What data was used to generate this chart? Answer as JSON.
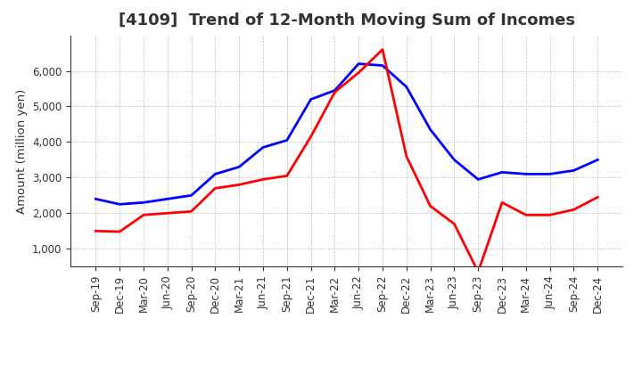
{
  "title": "[4109]  Trend of 12-Month Moving Sum of Incomes",
  "ylabel": "Amount (million yen)",
  "x_labels": [
    "Sep-19",
    "Dec-19",
    "Mar-20",
    "Jun-20",
    "Sep-20",
    "Dec-20",
    "Mar-21",
    "Jun-21",
    "Sep-21",
    "Dec-21",
    "Mar-22",
    "Jun-22",
    "Sep-22",
    "Dec-22",
    "Mar-23",
    "Jun-23",
    "Sep-23",
    "Dec-23",
    "Mar-24",
    "Jun-24",
    "Sep-24",
    "Dec-24"
  ],
  "ordinary_income": [
    2400,
    2250,
    2300,
    2400,
    2500,
    3100,
    3300,
    3850,
    4050,
    5200,
    5450,
    6200,
    6150,
    5550,
    4350,
    3500,
    2950,
    3150,
    3100,
    3100,
    3200,
    3500
  ],
  "net_income": [
    1500,
    1480,
    1950,
    2000,
    2050,
    2700,
    2800,
    2950,
    3050,
    4150,
    5400,
    5950,
    6600,
    3600,
    2200,
    1700,
    350,
    2300,
    1950,
    1950,
    2100,
    2450
  ],
  "ordinary_income_color": "#0000FF",
  "net_income_color": "#FF0000",
  "ylim": [
    500,
    7000
  ],
  "yticks": [
    1000,
    2000,
    3000,
    4000,
    5000,
    6000
  ],
  "background_color": "#FFFFFF",
  "plot_bg_color": "#FFFFFF",
  "grid_color": "#999999",
  "title_fontsize": 13,
  "label_fontsize": 9.5,
  "tick_fontsize": 8.5,
  "legend_fontsize": 9.5,
  "line_width": 2.0
}
